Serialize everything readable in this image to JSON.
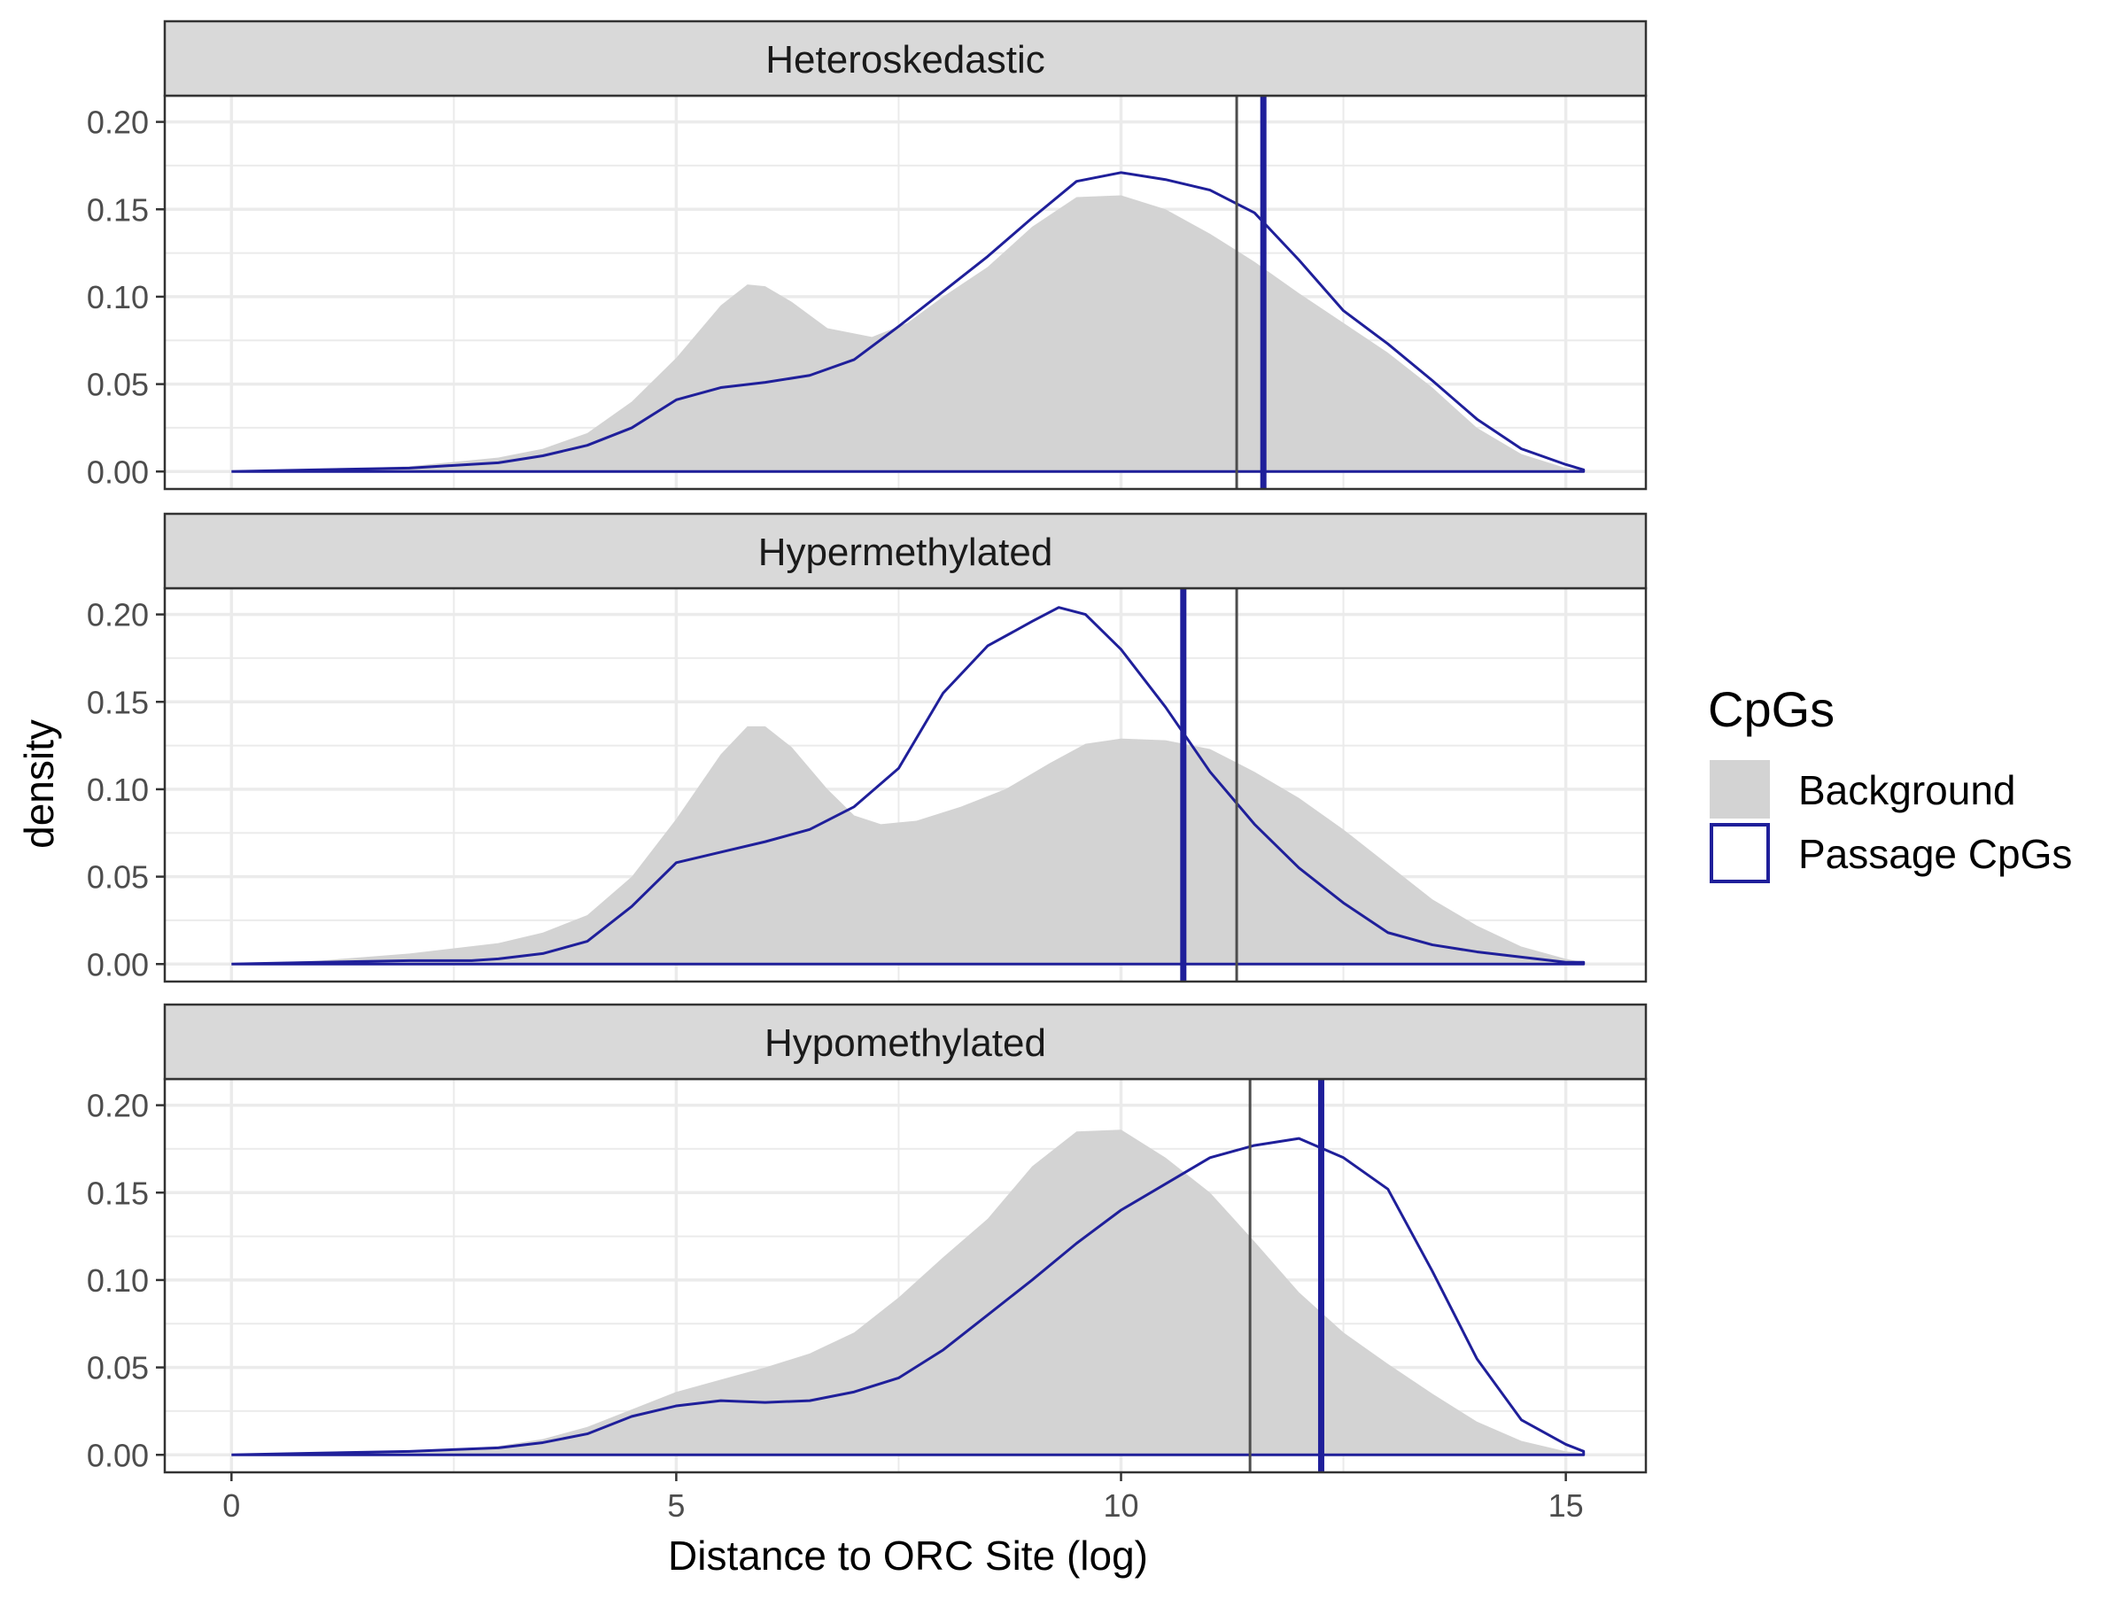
{
  "chart_data": {
    "type": "area",
    "xlabel": "Distance to ORC Site (log)",
    "ylabel": "density",
    "xlim": [
      -0.75,
      15.9
    ],
    "ylim": [
      -0.01,
      0.215
    ],
    "x_ticks": [
      0,
      5,
      10,
      15
    ],
    "x_tick_labels": [
      "0",
      "5",
      "10",
      "15"
    ],
    "y_ticks": [
      0,
      0.05,
      0.1,
      0.15,
      0.2
    ],
    "y_tick_labels": [
      "0.00",
      "0.05",
      "0.10",
      "0.15",
      "0.20"
    ],
    "grid": true,
    "legend": {
      "title": "CpGs",
      "placement": "right",
      "entries": [
        {
          "label": "Background",
          "style": "filled",
          "color": "#d3d3d3"
        },
        {
          "label": "Passage CpGs",
          "style": "outline",
          "color": "#1f1f9a"
        }
      ]
    },
    "colors": {
      "background_fill": "#d3d3d3",
      "passage_line": "#1f1f9a",
      "background_median_line": "#4d4d4d",
      "passage_median_line": "#1f1f9a",
      "strip_fill": "#d9d9d9",
      "grid": "#ebebeb"
    },
    "panels": [
      {
        "title": "Heteroskedastic",
        "background_median": 11.3,
        "passage_median": 11.6,
        "background": {
          "x": [
            0,
            1,
            2,
            3,
            3.5,
            4,
            4.5,
            5,
            5.5,
            5.8,
            6,
            6.3,
            6.7,
            7.2,
            7.6,
            8,
            8.5,
            9,
            9.5,
            10,
            10.5,
            11,
            11.5,
            12,
            12.5,
            13,
            13.5,
            14,
            14.5,
            15,
            15.2
          ],
          "y": [
            0,
            0.001,
            0.003,
            0.008,
            0.013,
            0.022,
            0.04,
            0.065,
            0.095,
            0.107,
            0.106,
            0.097,
            0.082,
            0.077,
            0.085,
            0.1,
            0.117,
            0.14,
            0.157,
            0.158,
            0.15,
            0.136,
            0.12,
            0.102,
            0.085,
            0.068,
            0.048,
            0.025,
            0.01,
            0.002,
            0.001
          ]
        },
        "passage": {
          "x": [
            0,
            1,
            2,
            3,
            3.5,
            4,
            4.5,
            5,
            5.5,
            6,
            6.5,
            7,
            7.5,
            8,
            8.5,
            9,
            9.5,
            10,
            10.5,
            11,
            11.5,
            12,
            12.5,
            13,
            13.5,
            14,
            14.5,
            15,
            15.2
          ],
          "y": [
            0,
            0.001,
            0.002,
            0.005,
            0.009,
            0.015,
            0.025,
            0.041,
            0.048,
            0.051,
            0.055,
            0.064,
            0.083,
            0.103,
            0.123,
            0.145,
            0.166,
            0.171,
            0.167,
            0.161,
            0.148,
            0.121,
            0.092,
            0.073,
            0.052,
            0.03,
            0.013,
            0.004,
            0.001
          ]
        }
      },
      {
        "title": "Hypermethylated",
        "background_median": 11.3,
        "passage_median": 10.7,
        "background": {
          "x": [
            0,
            1,
            2,
            3,
            3.5,
            4,
            4.5,
            5,
            5.5,
            5.8,
            6,
            6.3,
            6.7,
            7,
            7.3,
            7.7,
            8.2,
            8.7,
            9.2,
            9.6,
            10,
            10.5,
            11,
            11.5,
            12,
            12.5,
            13,
            13.5,
            14,
            14.5,
            15,
            15.2
          ],
          "y": [
            0,
            0.002,
            0.006,
            0.012,
            0.018,
            0.028,
            0.05,
            0.083,
            0.12,
            0.136,
            0.136,
            0.124,
            0.1,
            0.085,
            0.08,
            0.082,
            0.09,
            0.1,
            0.115,
            0.126,
            0.129,
            0.128,
            0.123,
            0.11,
            0.095,
            0.077,
            0.057,
            0.037,
            0.022,
            0.01,
            0.003,
            0.001
          ]
        },
        "passage": {
          "x": [
            0,
            1,
            2,
            2.7,
            3,
            3.5,
            4,
            4.5,
            5,
            5.5,
            6,
            6.5,
            7,
            7.5,
            8,
            8.5,
            9,
            9.3,
            9.6,
            10,
            10.5,
            11,
            11.5,
            12,
            12.5,
            13,
            13.5,
            14,
            14.5,
            15,
            15.2
          ],
          "y": [
            0,
            0.001,
            0.002,
            0.002,
            0.003,
            0.006,
            0.013,
            0.033,
            0.058,
            0.064,
            0.07,
            0.077,
            0.09,
            0.112,
            0.155,
            0.182,
            0.196,
            0.204,
            0.2,
            0.18,
            0.147,
            0.11,
            0.08,
            0.055,
            0.035,
            0.018,
            0.011,
            0.007,
            0.004,
            0.001,
            0.001
          ]
        }
      },
      {
        "title": "Hypomethylated",
        "background_median": 11.45,
        "passage_median": 12.25,
        "background": {
          "x": [
            0,
            1,
            2,
            3,
            3.5,
            4,
            4.5,
            5,
            5.5,
            6,
            6.5,
            7,
            7.5,
            8,
            8.5,
            9,
            9.5,
            10,
            10.5,
            11,
            11.5,
            12,
            12.5,
            13,
            13.5,
            14,
            14.5,
            15,
            15.2
          ],
          "y": [
            0,
            0.001,
            0.002,
            0.005,
            0.009,
            0.016,
            0.026,
            0.036,
            0.043,
            0.05,
            0.058,
            0.07,
            0.09,
            0.113,
            0.135,
            0.165,
            0.185,
            0.186,
            0.17,
            0.15,
            0.122,
            0.093,
            0.07,
            0.052,
            0.035,
            0.019,
            0.008,
            0.002,
            0.001
          ]
        },
        "passage": {
          "x": [
            0,
            1,
            2,
            3,
            3.5,
            4,
            4.5,
            5,
            5.5,
            6,
            6.5,
            7,
            7.5,
            8,
            8.5,
            9,
            9.5,
            10,
            10.5,
            11,
            11.5,
            12,
            12.5,
            13,
            13.5,
            14,
            14.5,
            15,
            15.2
          ],
          "y": [
            0,
            0.001,
            0.002,
            0.004,
            0.007,
            0.012,
            0.022,
            0.028,
            0.031,
            0.03,
            0.031,
            0.036,
            0.044,
            0.06,
            0.08,
            0.1,
            0.121,
            0.14,
            0.155,
            0.17,
            0.177,
            0.181,
            0.17,
            0.152,
            0.105,
            0.055,
            0.02,
            0.006,
            0.002
          ]
        }
      }
    ]
  }
}
